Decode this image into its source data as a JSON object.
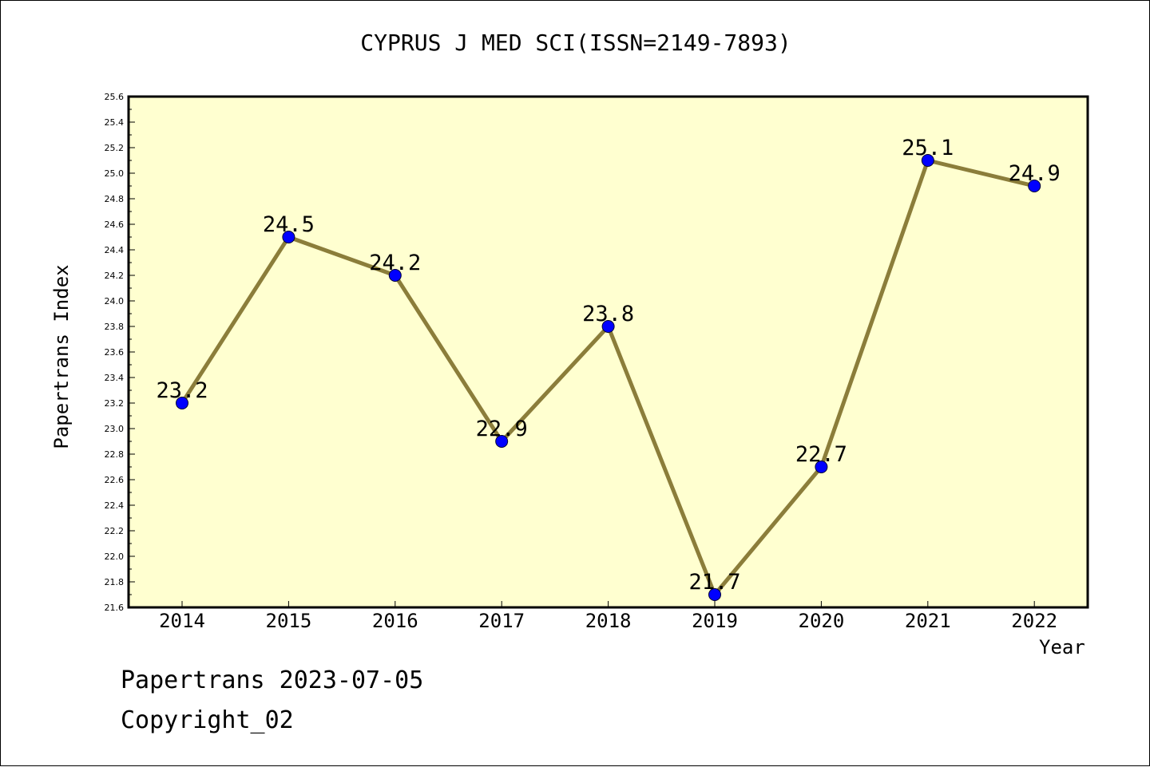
{
  "chart_data": {
    "type": "line",
    "title": "CYPRUS J MED SCI(ISSN=2149-7893)",
    "xlabel": "Year",
    "ylabel": "Papertrans Index",
    "categories": [
      "2014",
      "2015",
      "2016",
      "2017",
      "2018",
      "2019",
      "2020",
      "2021",
      "2022"
    ],
    "series": [
      {
        "values": [
          23.2,
          24.5,
          24.2,
          22.9,
          23.8,
          21.7,
          22.7,
          25.1,
          24.9
        ],
        "labels": [
          "23.2",
          "24.5",
          "24.2",
          "22.9",
          "23.8",
          "21.7",
          "22.7",
          "25.1",
          "24.9"
        ]
      }
    ],
    "ylim": [
      21.6,
      25.6
    ],
    "yticks": [
      "21.6",
      "21.8",
      "22.0",
      "22.2",
      "22.4",
      "22.6",
      "22.8",
      "23.0",
      "23.2",
      "23.4",
      "23.6",
      "23.8",
      "24.0",
      "24.2",
      "24.4",
      "24.6",
      "24.8",
      "25.0",
      "25.2",
      "25.4",
      "25.6"
    ],
    "grid": false,
    "colors": {
      "plot_background": "#ffffd0",
      "line": "#8b7d3a",
      "marker": "#0000ff",
      "axis": "#000000"
    }
  },
  "footer": {
    "date_text": "Papertrans 2023-07-05",
    "copyright_text": "Copyright_02"
  }
}
